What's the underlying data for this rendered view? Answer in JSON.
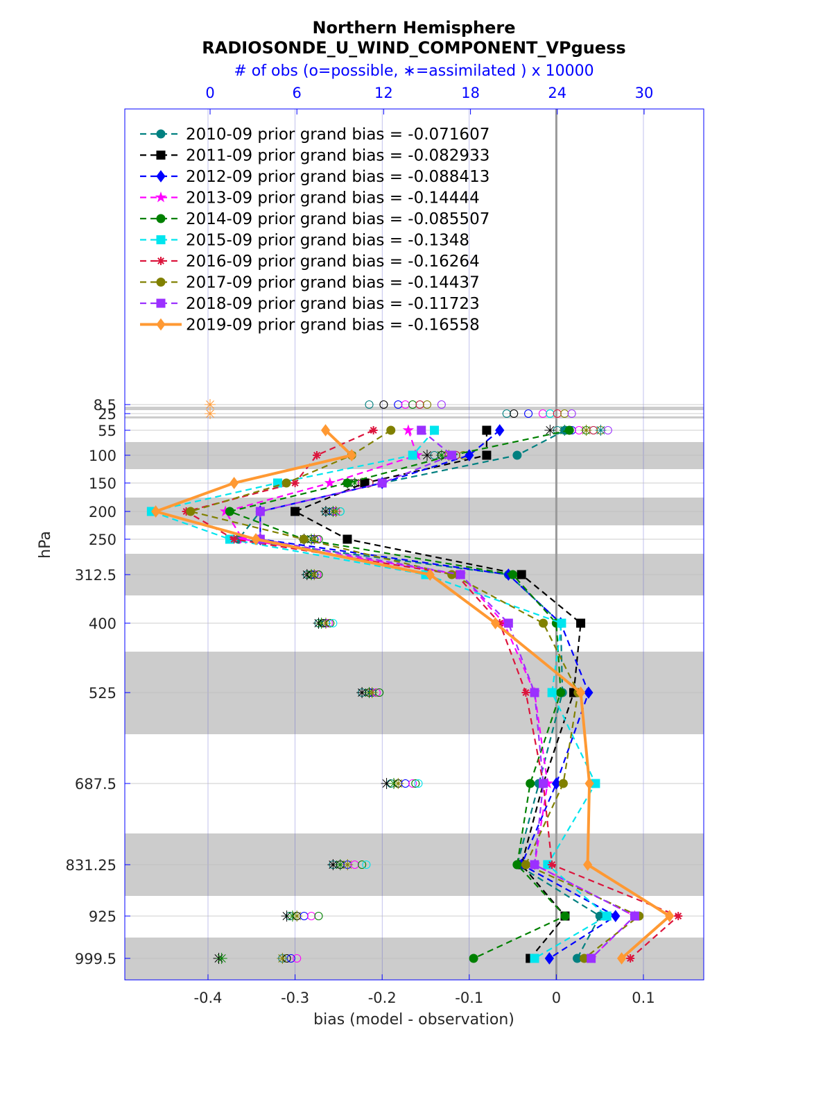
{
  "chart_data": {
    "type": "line",
    "title": "Northern Hemisphere",
    "subtitle": "RADIOSONDE_U_WIND_COMPONENT_VPguess",
    "top_axis_label": "# of obs (o=possible, ∗=assimilated ) x 10000",
    "top_ticks": [
      "0",
      "6",
      "12",
      "18",
      "24",
      "30"
    ],
    "top_xlim": [
      0,
      34
    ],
    "xlabel": "bias (model - observation)",
    "ylabel": "hPa",
    "x_ticks": [
      "-0.4",
      "-0.3",
      "-0.2",
      "-0.1",
      "0",
      "0.1"
    ],
    "xlim": [
      -0.5,
      0.17
    ],
    "levels": [
      8.5,
      25,
      55,
      100,
      150,
      200,
      250,
      312.5,
      400,
      525,
      687.5,
      831.25,
      925,
      999.5
    ],
    "level_labels": [
      "8.5",
      "25",
      "55",
      "100",
      "150",
      "200",
      "250",
      "312.5",
      "400",
      "525",
      "687.5",
      "831.25",
      "925",
      "999.5"
    ],
    "grid": true,
    "legend_position": "top-left",
    "series": [
      {
        "name": "2010-09 prior grand bias = -0.071607",
        "color": "#008080",
        "marker": "circle",
        "style": "dashed",
        "levels": [
          55,
          100,
          150,
          200,
          250,
          312.5,
          400,
          525,
          687.5,
          831.25,
          925,
          999.5
        ],
        "values": [
          0.01,
          -0.045,
          -0.2,
          -0.34,
          -0.365,
          -0.055,
          0.005,
          0.007,
          -0.02,
          -0.045,
          0.05,
          0.024
        ]
      },
      {
        "name": "2011-09 prior grand bias = -0.082933",
        "color": "#000000",
        "marker": "square",
        "style": "dashed",
        "levels": [
          55,
          100,
          150,
          200,
          250,
          312.5,
          400,
          525,
          687.5,
          831.25,
          925,
          999.5
        ],
        "values": [
          -0.08,
          -0.08,
          -0.22,
          -0.3,
          -0.24,
          -0.04,
          0.028,
          0.02,
          -0.015,
          -0.04,
          0.01,
          -0.03
        ]
      },
      {
        "name": "2012-09 prior grand bias = -0.088413",
        "color": "#0000ff",
        "marker": "diamond",
        "style": "dashed",
        "levels": [
          55,
          100,
          150,
          200,
          250,
          312.5,
          400,
          525,
          687.5,
          831.25,
          925,
          999.5
        ],
        "values": [
          -0.065,
          -0.1,
          -0.2,
          -0.34,
          -0.34,
          -0.055,
          0.005,
          0.037,
          0.0,
          -0.04,
          0.068,
          -0.008
        ]
      },
      {
        "name": "2013-09 prior grand bias = -0.14444",
        "color": "#ff00ff",
        "marker": "star",
        "style": "dashed",
        "levels": [
          55,
          100,
          150,
          200,
          250,
          312.5,
          400,
          525,
          687.5,
          831.25,
          925,
          999.5
        ],
        "values": [
          -0.17,
          -0.16,
          -0.26,
          -0.38,
          -0.36,
          -0.11,
          -0.06,
          -0.025,
          -0.01,
          -0.025,
          0.09,
          0.04
        ]
      },
      {
        "name": "2014-09 prior grand bias = -0.085507",
        "color": "#008000",
        "marker": "hexagram",
        "style": "dashed",
        "levels": [
          55,
          100,
          150,
          200,
          250,
          312.5,
          400,
          525,
          687.5,
          831.25,
          925,
          999.5
        ],
        "values": [
          0.015,
          -0.12,
          -0.24,
          -0.375,
          -0.29,
          -0.05,
          0.0,
          0.005,
          -0.03,
          -0.045,
          0.01,
          -0.095
        ]
      },
      {
        "name": "2015-09 prior grand bias = -0.1348",
        "color": "#00e5ee",
        "marker": "square",
        "style": "dashed",
        "levels": [
          55,
          100,
          150,
          200,
          250,
          312.5,
          400,
          525,
          687.5,
          831.25,
          925,
          999.5
        ],
        "values": [
          -0.14,
          -0.165,
          -0.32,
          -0.465,
          -0.375,
          -0.15,
          0.006,
          -0.005,
          0.045,
          -0.01,
          0.058,
          -0.025
        ]
      },
      {
        "name": "2016-09 prior grand bias = -0.16264",
        "color": "#dc143c",
        "marker": "asterisk",
        "style": "dashed",
        "levels": [
          55,
          100,
          150,
          200,
          250,
          312.5,
          400,
          525,
          687.5,
          831.25,
          925,
          999.5
        ],
        "values": [
          -0.21,
          -0.275,
          -0.3,
          -0.425,
          -0.37,
          -0.115,
          -0.065,
          -0.035,
          -0.015,
          -0.005,
          0.14,
          0.085
        ]
      },
      {
        "name": "2017-09 prior grand bias = -0.14437",
        "color": "#808000",
        "marker": "circle",
        "style": "dashed",
        "levels": [
          55,
          100,
          150,
          200,
          250,
          312.5,
          400,
          525,
          687.5,
          831.25,
          925,
          999.5
        ],
        "values": [
          -0.19,
          -0.235,
          -0.31,
          -0.42,
          -0.29,
          -0.12,
          -0.015,
          0.025,
          0.008,
          -0.035,
          0.095,
          0.032
        ]
      },
      {
        "name": "2018-09 prior grand bias = -0.11723",
        "color": "#9b30ff",
        "marker": "square",
        "style": "dashed",
        "levels": [
          55,
          100,
          150,
          200,
          250,
          312.5,
          400,
          525,
          687.5,
          831.25,
          925,
          999.5
        ],
        "values": [
          -0.155,
          -0.12,
          -0.2,
          -0.34,
          -0.34,
          -0.11,
          -0.055,
          -0.025,
          -0.015,
          -0.025,
          0.09,
          0.04
        ]
      },
      {
        "name": "2019-09 prior grand bias = -0.16558",
        "color": "#ff9933",
        "marker": "diamond",
        "style": "solid",
        "levels": [
          55,
          100,
          150,
          200,
          250,
          312.5,
          400,
          525,
          687.5,
          831.25,
          925,
          999.5
        ],
        "values": [
          -0.265,
          -0.235,
          -0.37,
          -0.46,
          -0.345,
          -0.145,
          -0.07,
          0.028,
          0.038,
          0.036,
          0.13,
          0.075
        ]
      }
    ],
    "obs_counts": {
      "note_units": "x 10000",
      "rows": [
        {
          "level": 8.5,
          "possible": [
            11.0,
            12.0,
            13.0,
            13.5,
            14.0,
            14.5,
            14.5,
            15.0,
            16.0
          ],
          "assimilated": [
            0.0
          ]
        },
        {
          "level": 25,
          "possible": [
            20.5,
            21.0,
            22.0,
            23.0,
            23.5,
            23.5,
            24.0,
            24.5,
            25.0
          ],
          "assimilated": [
            0.0
          ]
        },
        {
          "level": 55,
          "possible": [
            24.0,
            24.5,
            25.0,
            25.5,
            26.0,
            26.5,
            26.5,
            27.0,
            27.5
          ],
          "assimilated": [
            23.5,
            24.5,
            26.0,
            27.0
          ]
        },
        {
          "level": 100,
          "possible": [
            15.5,
            16.0,
            16.5,
            16.5,
            17.0,
            17.0,
            17.0,
            17.5
          ],
          "assimilated": [
            15.0,
            16.0,
            16.5
          ]
        },
        {
          "level": 150,
          "possible": [
            9.5,
            10.0,
            10.5,
            10.5,
            11.0,
            11.0,
            11.0
          ],
          "assimilated": [
            9.5,
            10.0,
            10.5
          ]
        },
        {
          "level": 200,
          "possible": [
            8.0,
            8.5,
            8.5,
            8.7,
            9.0,
            9.0
          ],
          "assimilated": [
            8.0,
            8.5,
            8.7
          ]
        },
        {
          "level": 250,
          "possible": [
            6.5,
            7.0,
            7.2,
            7.4,
            7.5
          ],
          "assimilated": [
            6.5,
            7.0,
            7.2
          ]
        },
        {
          "level": 312.5,
          "possible": [
            6.7,
            7.0,
            7.2,
            7.4,
            7.5
          ],
          "assimilated": [
            6.7,
            7.0,
            7.2
          ]
        },
        {
          "level": 400,
          "possible": [
            7.5,
            7.8,
            8.0,
            8.2,
            8.3,
            8.5
          ],
          "assimilated": [
            7.5,
            7.7,
            8.0
          ]
        },
        {
          "level": 525,
          "possible": [
            10.5,
            11.0,
            11.2,
            11.5,
            11.7
          ],
          "assimilated": [
            10.5,
            11.0,
            11.2
          ]
        },
        {
          "level": 687.5,
          "possible": [
            12.5,
            13.0,
            13.5,
            14.0,
            14.2,
            14.4
          ],
          "assimilated": [
            12.2,
            12.7,
            13.0
          ]
        },
        {
          "level": 831.25,
          "possible": [
            8.5,
            9.0,
            9.5,
            10.0,
            10.5,
            10.8
          ],
          "assimilated": [
            8.5,
            9.0,
            9.5
          ]
        },
        {
          "level": 925,
          "possible": [
            5.5,
            6.0,
            6.5,
            7.0,
            7.5
          ],
          "assimilated": [
            5.3,
            5.7,
            6.0
          ]
        },
        {
          "level": 999.5,
          "possible": [
            5.0,
            5.3,
            5.6,
            6.0
          ],
          "assimilated": [
            0.6,
            0.8,
            5.0
          ]
        }
      ]
    }
  }
}
